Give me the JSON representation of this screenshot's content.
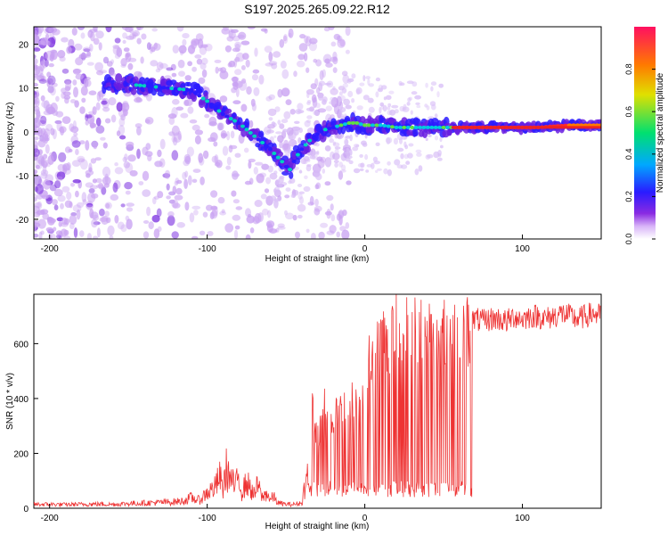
{
  "title": "S197.2025.265.09.22.R12",
  "colors": {
    "snr_line": "#ee3333",
    "ridge": "#ee2222",
    "colormap": [
      "#ffffff",
      "#d8b4f8",
      "#8a2be2",
      "#2a1bff",
      "#00a8ff",
      "#00e070",
      "#e0e000",
      "#ff7a00",
      "#ff1060"
    ]
  },
  "chart_data": [
    {
      "type": "heatmap",
      "name": "spectrogram",
      "title": "S197.2025.265.09.22.R12",
      "xlabel": "Height of straight line (km)",
      "ylabel": "Frequency (Hz)",
      "xlim": [
        -210,
        150
      ],
      "ylim": [
        -24.5,
        24
      ],
      "x_ticks": [
        -200,
        -100,
        0,
        100
      ],
      "y_ticks": [
        -20,
        -10,
        0,
        10,
        20
      ],
      "x_tick_labels": [
        "-200",
        "-100",
        "0",
        "100"
      ],
      "y_tick_labels": [
        "-20",
        "-10",
        "0",
        "10",
        "20"
      ],
      "ridge_x": [
        -155,
        -140,
        -125,
        -110,
        -100,
        -90,
        -80,
        -70,
        -60,
        -52,
        -48,
        -44,
        -40,
        -35,
        -30,
        -25,
        -20,
        -15,
        -10,
        -5,
        0,
        10,
        20,
        30,
        40,
        55,
        70,
        90,
        110,
        130,
        150
      ],
      "ridge_freq": [
        11,
        10.5,
        10,
        9.5,
        7,
        4,
        2,
        -1,
        -4,
        -7,
        -9,
        -6,
        -4,
        -2,
        -0.5,
        0.5,
        1,
        1.5,
        2,
        2,
        1.5,
        1.5,
        1,
        1,
        1,
        1,
        1,
        1,
        1,
        1.5,
        1.5
      ],
      "colorbar": {
        "label": "Normalized spectral amplitude",
        "range": [
          0,
          1
        ],
        "ticks": [
          0.0,
          0.2,
          0.4,
          0.6,
          0.8
        ],
        "tick_labels": [
          "0.0",
          "0.2",
          "0.4",
          "0.6",
          "0.8"
        ]
      }
    },
    {
      "type": "line",
      "name": "snr",
      "xlabel": "Height of straight line (km)",
      "ylabel": "SNR (10 * v/v)",
      "xlim": [
        -210,
        150
      ],
      "ylim": [
        0,
        780
      ],
      "x_ticks": [
        -200,
        -100,
        0,
        100
      ],
      "y_ticks": [
        0,
        200,
        400,
        600
      ],
      "x_tick_labels": [
        "-200",
        "-100",
        "0",
        "100"
      ],
      "y_tick_labels": [
        "0",
        "200",
        "400",
        "600"
      ],
      "series": [
        {
          "name": "SNR",
          "x": [
            -210,
            -200,
            -190,
            -180,
            -170,
            -160,
            -150,
            -140,
            -130,
            -120,
            -115,
            -110,
            -105,
            -100,
            -95,
            -92,
            -90,
            -88,
            -85,
            -82,
            -80,
            -78,
            -75,
            -72,
            -70,
            -68,
            -65,
            -62,
            -60,
            -58,
            -55,
            -50,
            -45,
            -40,
            -37,
            -35,
            -33,
            -30,
            -28,
            -25,
            -22,
            -20,
            -18,
            -15,
            -12,
            -10,
            -8,
            -5,
            -2,
            0,
            2,
            5,
            8,
            10,
            12,
            14,
            17,
            20,
            23,
            25,
            28,
            30,
            35,
            40,
            45,
            50,
            55,
            60,
            65,
            68,
            70,
            75,
            80,
            85,
            90,
            95,
            100,
            105,
            110,
            115,
            120,
            125,
            130,
            135,
            140,
            145,
            150
          ],
          "y": [
            15,
            15,
            14,
            15,
            16,
            15,
            18,
            20,
            22,
            25,
            28,
            40,
            30,
            60,
            80,
            120,
            70,
            150,
            110,
            80,
            130,
            60,
            100,
            70,
            50,
            90,
            40,
            60,
            30,
            45,
            20,
            15,
            15,
            20,
            120,
            280,
            380,
            260,
            320,
            420,
            350,
            340,
            390,
            370,
            400,
            360,
            410,
            380,
            420,
            470,
            560,
            540,
            600,
            630,
            660,
            600,
            690,
            700,
            680,
            700,
            690,
            680,
            690,
            680,
            670,
            680,
            690,
            680,
            680,
            680,
            690,
            680,
            690,
            690,
            680,
            700,
            690,
            700,
            700,
            690,
            700,
            710,
            700,
            690,
            700,
            710,
            700
          ]
        }
      ]
    }
  ]
}
